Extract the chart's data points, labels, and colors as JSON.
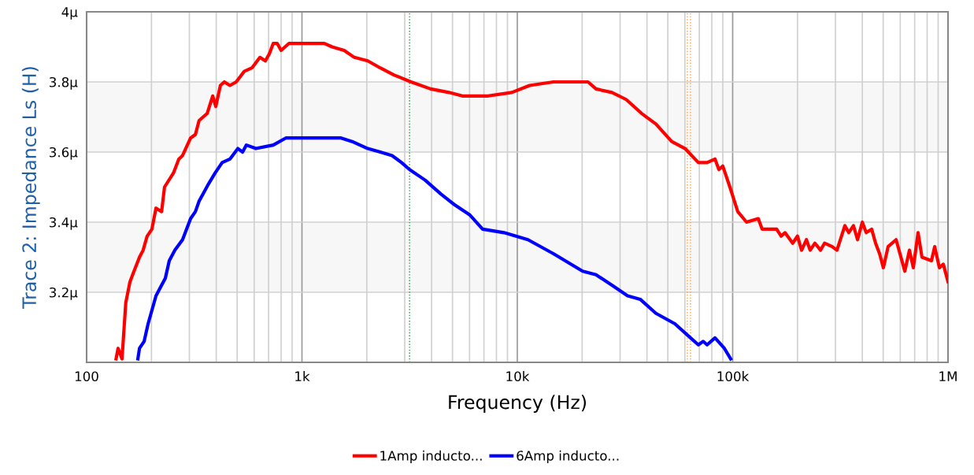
{
  "chart_data": {
    "type": "line",
    "xlabel": "Frequency (Hz)",
    "ylabel": "Trace 2: Impedance Ls (H)",
    "log": "x",
    "grid": true,
    "legend": "bottom",
    "line_style": "solid",
    "marker": "none",
    "xlim": [
      100,
      1000000
    ],
    "ylim": [
      3.0,
      4.0
    ],
    "xticks": [
      100,
      {
        "value": 200,
        "label": null
      },
      {
        "value": 300,
        "label": null
      },
      {
        "value": 400,
        "label": null
      },
      {
        "value": 500,
        "label": null
      },
      {
        "value": 600,
        "label": null
      },
      {
        "value": 700,
        "label": null
      },
      {
        "value": 800,
        "label": null
      },
      {
        "value": 900,
        "label": null
      },
      {
        "value": 1000,
        "label": "1k"
      },
      {
        "value": 2000,
        "label": null
      },
      {
        "value": 3000,
        "label": null
      },
      {
        "value": 4000,
        "label": null
      },
      {
        "value": 5000,
        "label": null
      },
      {
        "value": 6000,
        "label": null
      },
      {
        "value": 7000,
        "label": null
      },
      {
        "value": 8000,
        "label": null
      },
      {
        "value": 9000,
        "label": null
      },
      {
        "value": 10000,
        "label": "10k"
      },
      {
        "value": 20000,
        "label": null
      },
      {
        "value": 30000,
        "label": null
      },
      {
        "value": 40000,
        "label": null
      },
      {
        "value": 50000,
        "label": null
      },
      {
        "value": 60000,
        "label": null
      },
      {
        "value": 70000,
        "label": null
      },
      {
        "value": 80000,
        "label": null
      },
      {
        "value": 90000,
        "label": null
      },
      {
        "value": 100000,
        "label": "100k"
      },
      {
        "value": 200000,
        "label": null
      },
      {
        "value": 300000,
        "label": null
      },
      {
        "value": 400000,
        "label": null
      },
      {
        "value": 500000,
        "label": null
      },
      {
        "value": 600000,
        "label": null
      },
      {
        "value": 700000,
        "label": null
      },
      {
        "value": 800000,
        "label": null
      },
      {
        "value": 900000,
        "label": null
      },
      {
        "value": 1000000,
        "label": "1M"
      }
    ],
    "yticks": [
      {
        "value": 3.2,
        "label": "3.2µ"
      },
      {
        "value": 3.4,
        "label": "3.4µ"
      },
      {
        "value": 3.6,
        "label": "3.6µ"
      },
      {
        "value": 3.8,
        "label": "3.8µ"
      },
      {
        "value": 4.0,
        "label": "4µ"
      }
    ],
    "bands": [
      {
        "axis": "y",
        "from": 3.2,
        "to": 3.4,
        "color": "#f7f7f7"
      },
      {
        "axis": "y",
        "from": 3.6,
        "to": 3.8,
        "color": "#f7f7f7"
      }
    ],
    "ref_lines": [
      {
        "axis": "x",
        "value": 3160,
        "color": "#2e8b57",
        "line_style": "dotted"
      },
      {
        "axis": "x",
        "value": 61600,
        "color": "#ffa040",
        "line_style": "dotted"
      },
      {
        "axis": "x",
        "value": 63700,
        "color": "#ffa040",
        "line_style": "dotted"
      }
    ],
    "series": [
      {
        "name": "1Amp inducto...",
        "color": "#ff0000",
        "x": [
          137,
          140,
          146,
          152,
          159,
          166,
          176,
          183,
          191,
          201,
          210,
          223,
          230,
          253,
          268,
          279,
          304,
          320,
          333,
          363,
          385,
          398,
          418,
          436,
          463,
          495,
          539,
          586,
          638,
          676,
          705,
          736,
          767,
          800,
          871,
          971,
          1060,
          1150,
          1270,
          1380,
          1570,
          1750,
          2020,
          2310,
          2670,
          3210,
          3960,
          4810,
          5550,
          7320,
          9430,
          11400,
          14700,
          18500,
          21300,
          23200,
          27500,
          32000,
          37800,
          44000,
          52100,
          60100,
          69300,
          76100,
          82800,
          86300,
          90000,
          97100,
          105600,
          116000,
          131500,
          137000,
          160000,
          168000,
          175000,
          190000,
          200000,
          209000,
          220000,
          229000,
          241000,
          256000,
          267000,
          290000,
          305000,
          332000,
          346000,
          364000,
          380000,
          400000,
          417000,
          442000,
          461000,
          481000,
          501000,
          527000,
          574000,
          630000,
          662000,
          690000,
          726000,
          757000,
          838000,
          867000,
          912000,
          951000,
          1000000
        ],
        "values": [
          3.01,
          3.04,
          3.01,
          3.17,
          3.23,
          3.26,
          3.3,
          3.32,
          3.36,
          3.38,
          3.44,
          3.43,
          3.5,
          3.54,
          3.58,
          3.59,
          3.64,
          3.65,
          3.69,
          3.71,
          3.76,
          3.73,
          3.79,
          3.8,
          3.79,
          3.8,
          3.83,
          3.84,
          3.87,
          3.86,
          3.88,
          3.91,
          3.91,
          3.89,
          3.91,
          3.91,
          3.91,
          3.91,
          3.91,
          3.9,
          3.89,
          3.87,
          3.86,
          3.84,
          3.82,
          3.8,
          3.78,
          3.77,
          3.76,
          3.76,
          3.77,
          3.79,
          3.8,
          3.8,
          3.8,
          3.78,
          3.77,
          3.75,
          3.71,
          3.68,
          3.63,
          3.61,
          3.57,
          3.57,
          3.58,
          3.55,
          3.56,
          3.5,
          3.43,
          3.4,
          3.41,
          3.38,
          3.38,
          3.36,
          3.37,
          3.34,
          3.36,
          3.32,
          3.35,
          3.32,
          3.34,
          3.32,
          3.34,
          3.33,
          3.32,
          3.39,
          3.37,
          3.39,
          3.35,
          3.4,
          3.37,
          3.38,
          3.34,
          3.31,
          3.27,
          3.33,
          3.35,
          3.26,
          3.32,
          3.27,
          3.37,
          3.3,
          3.29,
          3.33,
          3.27,
          3.28,
          3.23
        ]
      },
      {
        "name": "6Amp inducto...",
        "color": "#0000ff",
        "x": [
          173,
          176,
          185,
          193,
          210,
          223,
          232,
          242,
          257,
          279,
          304,
          320,
          333,
          369,
          395,
          426,
          463,
          504,
          530,
          552,
          611,
          736,
          841,
          971,
          1080,
          1270,
          1520,
          1710,
          2020,
          2310,
          2620,
          2900,
          3160,
          3730,
          4420,
          5100,
          6030,
          6900,
          8670,
          11200,
          14700,
          20100,
          23200,
          27500,
          32500,
          37200,
          44000,
          53900,
          63700,
          69300,
          72900,
          76100,
          82800,
          91500,
          97900
        ],
        "values": [
          3.01,
          3.04,
          3.06,
          3.11,
          3.19,
          3.22,
          3.24,
          3.29,
          3.32,
          3.35,
          3.41,
          3.43,
          3.46,
          3.51,
          3.54,
          3.57,
          3.58,
          3.61,
          3.6,
          3.62,
          3.61,
          3.62,
          3.64,
          3.64,
          3.64,
          3.64,
          3.64,
          3.63,
          3.61,
          3.6,
          3.59,
          3.57,
          3.55,
          3.52,
          3.48,
          3.45,
          3.42,
          3.38,
          3.37,
          3.35,
          3.31,
          3.26,
          3.25,
          3.22,
          3.19,
          3.18,
          3.14,
          3.11,
          3.07,
          3.05,
          3.06,
          3.05,
          3.07,
          3.04,
          3.01
        ]
      }
    ]
  }
}
